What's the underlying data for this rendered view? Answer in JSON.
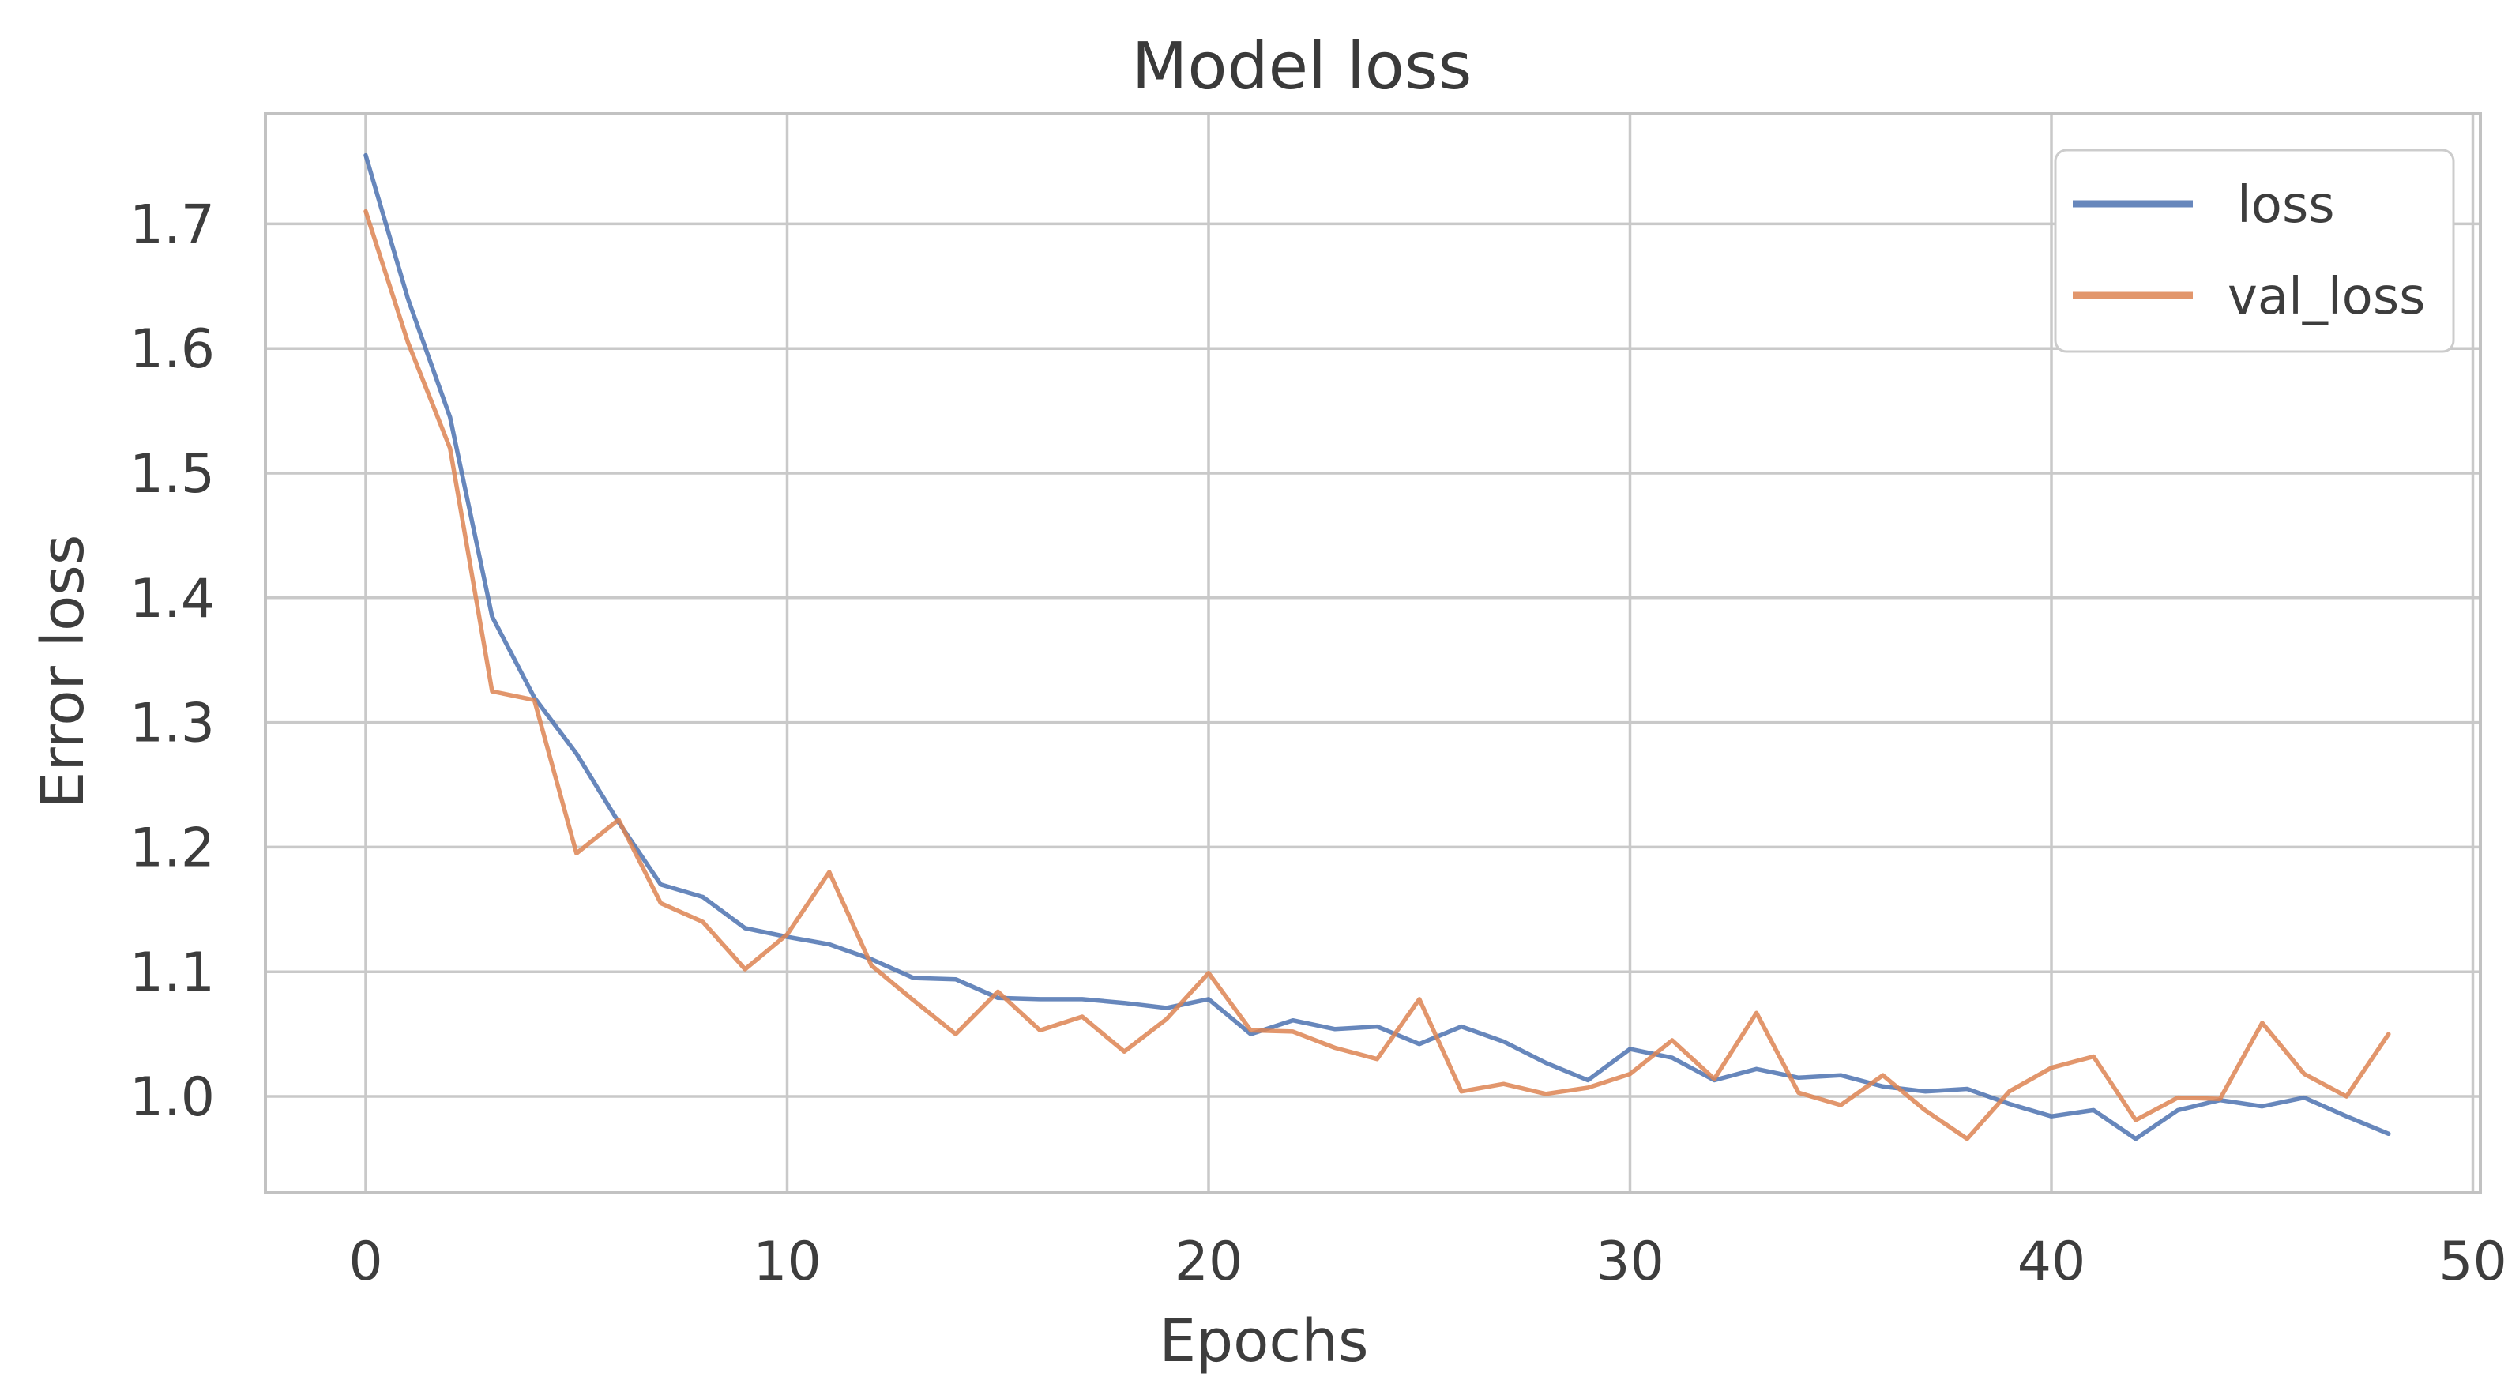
{
  "figure": {
    "title": "Model loss",
    "xlabel": "Epochs",
    "ylabel": "Error loss"
  },
  "legend": {
    "position": "upper right",
    "items": [
      {
        "label": "loss",
        "color": "#4C72B0"
      },
      {
        "label": "val_loss",
        "color": "#DD8452"
      }
    ]
  },
  "colors": {
    "loss_line": "#4C72B0",
    "val_loss_line": "#DD8452",
    "grid": "#c9c9c9",
    "spine": "#c2c2c2",
    "text": "#3d3d3d",
    "title_text": "#3a3a3a",
    "legend_border": "#cccccc",
    "background": "#ffffff"
  },
  "chart_data": {
    "type": "line",
    "title": "Model loss",
    "xlabel": "Epochs",
    "ylabel": "Error loss",
    "grid": true,
    "legend_position": "upper right",
    "xlim": [
      -2.4,
      50.4
    ],
    "ylim": [
      0.925,
      1.79
    ],
    "xticks": [
      0,
      10,
      20,
      30,
      40,
      50
    ],
    "xtick_labels": [
      "0",
      "10",
      "20",
      "30",
      "40",
      "50"
    ],
    "yticks": [
      1.0,
      1.1,
      1.2,
      1.3,
      1.4,
      1.5,
      1.6,
      1.7
    ],
    "ytick_labels": [
      "1.0",
      "1.1",
      "1.2",
      "1.3",
      "1.4",
      "1.5",
      "1.6",
      "1.7"
    ],
    "x": [
      0,
      1,
      2,
      3,
      4,
      5,
      6,
      7,
      8,
      9,
      10,
      11,
      12,
      13,
      14,
      15,
      16,
      17,
      18,
      19,
      20,
      21,
      22,
      23,
      24,
      25,
      26,
      27,
      28,
      29,
      30,
      31,
      32,
      33,
      34,
      35,
      36,
      37,
      38,
      39,
      40,
      41,
      42,
      43,
      44,
      45,
      46,
      47,
      48
    ],
    "series": [
      {
        "name": "loss",
        "color": "#4C72B0",
        "values": [
          1.755,
          1.64,
          1.545,
          1.385,
          1.32,
          1.275,
          1.22,
          1.17,
          1.16,
          1.135,
          1.128,
          1.122,
          1.11,
          1.095,
          1.094,
          1.079,
          1.078,
          1.078,
          1.075,
          1.071,
          1.078,
          1.05,
          1.061,
          1.054,
          1.056,
          1.042,
          1.056,
          1.044,
          1.027,
          1.013,
          1.038,
          1.031,
          1.013,
          1.022,
          1.015,
          1.017,
          1.008,
          1.004,
          1.006,
          0.994,
          0.984,
          0.989,
          0.966,
          0.989,
          0.997,
          0.992,
          0.999,
          0.984,
          0.97
        ]
      },
      {
        "name": "val_loss",
        "color": "#DD8452",
        "values": [
          1.71,
          1.605,
          1.52,
          1.325,
          1.318,
          1.195,
          1.222,
          1.155,
          1.14,
          1.102,
          1.13,
          1.18,
          1.105,
          1.077,
          1.05,
          1.084,
          1.053,
          1.064,
          1.036,
          1.062,
          1.099,
          1.053,
          1.052,
          1.039,
          1.03,
          1.078,
          1.004,
          1.01,
          1.002,
          1.007,
          1.018,
          1.045,
          1.014,
          1.067,
          1.003,
          0.993,
          1.017,
          0.989,
          0.966,
          1.004,
          1.023,
          1.032,
          0.981,
          0.999,
          0.998,
          1.059,
          1.018,
          1.0,
          1.05
        ]
      }
    ]
  }
}
